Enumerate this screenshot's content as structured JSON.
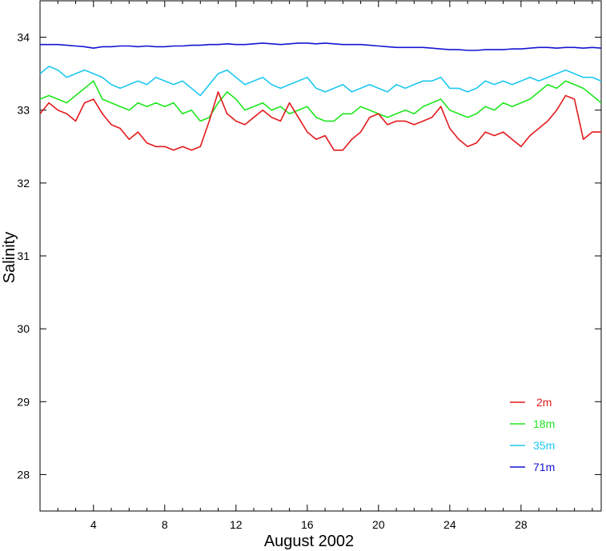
{
  "chart_data": {
    "type": "line",
    "title": "",
    "xlabel": "August 2002",
    "ylabel": "Salinity",
    "xlim": [
      1,
      32.5
    ],
    "ylim": [
      27.5,
      34.5
    ],
    "x_ticks": [
      4,
      8,
      12,
      16,
      20,
      24,
      28
    ],
    "y_ticks": [
      28,
      29,
      30,
      31,
      32,
      33,
      34
    ],
    "grid": false,
    "legend_position": "bottom-right",
    "series": [
      {
        "name": "2m",
        "color": "#e41a1c",
        "x": [
          1.0,
          1.5,
          2.0,
          2.5,
          3.0,
          3.5,
          4.0,
          4.5,
          5.0,
          5.5,
          6.0,
          6.5,
          7.0,
          7.5,
          8.0,
          8.5,
          9.0,
          9.5,
          10.0,
          10.5,
          11.0,
          11.5,
          12.0,
          12.5,
          13.0,
          13.5,
          14.0,
          14.5,
          15.0,
          15.5,
          16.0,
          16.5,
          17.0,
          17.5,
          18.0,
          18.5,
          19.0,
          19.5,
          20.0,
          20.5,
          21.0,
          21.5,
          22.0,
          22.5,
          23.0,
          23.5,
          24.0,
          24.5,
          25.0,
          25.5,
          26.0,
          26.5,
          27.0,
          27.5,
          28.0,
          28.5,
          29.0,
          29.5,
          30.0,
          30.5,
          31.0,
          31.5,
          32.0,
          32.5
        ],
        "values": [
          32.95,
          33.1,
          33.0,
          32.95,
          32.85,
          33.1,
          33.15,
          32.95,
          32.8,
          32.75,
          32.6,
          32.7,
          32.55,
          32.5,
          32.5,
          32.45,
          32.5,
          32.45,
          32.5,
          32.85,
          33.25,
          32.95,
          32.85,
          32.8,
          32.9,
          33.0,
          32.9,
          32.85,
          33.1,
          32.9,
          32.7,
          32.6,
          32.65,
          32.45,
          32.45,
          32.6,
          32.7,
          32.9,
          32.95,
          32.8,
          32.85,
          32.85,
          32.8,
          32.85,
          32.9,
          33.05,
          32.75,
          32.6,
          32.5,
          32.55,
          32.7,
          32.65,
          32.7,
          32.6,
          32.5,
          32.65,
          32.75,
          32.85,
          33.0,
          33.2,
          33.15,
          32.6,
          32.7,
          32.7
        ]
      },
      {
        "name": "18m",
        "color": "#1ee61e",
        "x": [
          1.0,
          1.5,
          2.0,
          2.5,
          3.0,
          3.5,
          4.0,
          4.5,
          5.0,
          5.5,
          6.0,
          6.5,
          7.0,
          7.5,
          8.0,
          8.5,
          9.0,
          9.5,
          10.0,
          10.5,
          11.0,
          11.5,
          12.0,
          12.5,
          13.0,
          13.5,
          14.0,
          14.5,
          15.0,
          15.5,
          16.0,
          16.5,
          17.0,
          17.5,
          18.0,
          18.5,
          19.0,
          19.5,
          20.0,
          20.5,
          21.0,
          21.5,
          22.0,
          22.5,
          23.0,
          23.5,
          24.0,
          24.5,
          25.0,
          25.5,
          26.0,
          26.5,
          27.0,
          27.5,
          28.0,
          28.5,
          29.0,
          29.5,
          30.0,
          30.5,
          31.0,
          31.5,
          32.0,
          32.5
        ],
        "values": [
          33.15,
          33.2,
          33.15,
          33.1,
          33.2,
          33.3,
          33.4,
          33.15,
          33.1,
          33.05,
          33.0,
          33.1,
          33.05,
          33.1,
          33.05,
          33.1,
          32.95,
          33.0,
          32.85,
          32.9,
          33.1,
          33.25,
          33.15,
          33.0,
          33.05,
          33.1,
          33.0,
          33.05,
          32.95,
          33.0,
          33.05,
          32.9,
          32.85,
          32.85,
          32.95,
          32.95,
          33.05,
          33.0,
          32.95,
          32.9,
          32.95,
          33.0,
          32.95,
          33.05,
          33.1,
          33.15,
          33.0,
          32.95,
          32.9,
          32.95,
          33.05,
          33.0,
          33.1,
          33.05,
          33.1,
          33.15,
          33.25,
          33.35,
          33.3,
          33.4,
          33.35,
          33.3,
          33.2,
          33.1
        ]
      },
      {
        "name": "35m",
        "color": "#1ec8f0",
        "x": [
          1.0,
          1.5,
          2.0,
          2.5,
          3.0,
          3.5,
          4.0,
          4.5,
          5.0,
          5.5,
          6.0,
          6.5,
          7.0,
          7.5,
          8.0,
          8.5,
          9.0,
          9.5,
          10.0,
          10.5,
          11.0,
          11.5,
          12.0,
          12.5,
          13.0,
          13.5,
          14.0,
          14.5,
          15.0,
          15.5,
          16.0,
          16.5,
          17.0,
          17.5,
          18.0,
          18.5,
          19.0,
          19.5,
          20.0,
          20.5,
          21.0,
          21.5,
          22.0,
          22.5,
          23.0,
          23.5,
          24.0,
          24.5,
          25.0,
          25.5,
          26.0,
          26.5,
          27.0,
          27.5,
          28.0,
          28.5,
          29.0,
          29.5,
          30.0,
          30.5,
          31.0,
          31.5,
          32.0,
          32.5
        ],
        "values": [
          33.5,
          33.6,
          33.55,
          33.45,
          33.5,
          33.55,
          33.5,
          33.45,
          33.35,
          33.3,
          33.35,
          33.4,
          33.35,
          33.45,
          33.4,
          33.35,
          33.4,
          33.3,
          33.2,
          33.35,
          33.5,
          33.55,
          33.45,
          33.35,
          33.4,
          33.45,
          33.35,
          33.3,
          33.35,
          33.4,
          33.45,
          33.3,
          33.25,
          33.3,
          33.35,
          33.25,
          33.3,
          33.35,
          33.3,
          33.25,
          33.35,
          33.3,
          33.35,
          33.4,
          33.4,
          33.45,
          33.3,
          33.3,
          33.25,
          33.3,
          33.4,
          33.35,
          33.4,
          33.35,
          33.4,
          33.45,
          33.4,
          33.45,
          33.5,
          33.55,
          33.5,
          33.45,
          33.45,
          33.4
        ]
      },
      {
        "name": "71m",
        "color": "#1414d2",
        "x": [
          1.0,
          1.5,
          2.0,
          2.5,
          3.0,
          3.5,
          4.0,
          4.5,
          5.0,
          5.5,
          6.0,
          6.5,
          7.0,
          7.5,
          8.0,
          8.5,
          9.0,
          9.5,
          10.0,
          10.5,
          11.0,
          11.5,
          12.0,
          12.5,
          13.0,
          13.5,
          14.0,
          14.5,
          15.0,
          15.5,
          16.0,
          16.5,
          17.0,
          17.5,
          18.0,
          18.5,
          19.0,
          19.5,
          20.0,
          20.5,
          21.0,
          21.5,
          22.0,
          22.5,
          23.0,
          23.5,
          24.0,
          24.5,
          25.0,
          25.5,
          26.0,
          26.5,
          27.0,
          27.5,
          28.0,
          28.5,
          29.0,
          29.5,
          30.0,
          30.5,
          31.0,
          31.5,
          32.0,
          32.5
        ],
        "values": [
          33.9,
          33.9,
          33.9,
          33.89,
          33.88,
          33.87,
          33.85,
          33.87,
          33.87,
          33.88,
          33.88,
          33.87,
          33.88,
          33.87,
          33.87,
          33.88,
          33.88,
          33.89,
          33.89,
          33.9,
          33.9,
          33.91,
          33.9,
          33.9,
          33.91,
          33.92,
          33.91,
          33.9,
          33.91,
          33.92,
          33.92,
          33.91,
          33.92,
          33.91,
          33.9,
          33.9,
          33.9,
          33.89,
          33.88,
          33.87,
          33.86,
          33.86,
          33.86,
          33.86,
          33.85,
          33.84,
          33.83,
          33.83,
          33.82,
          33.82,
          33.83,
          33.83,
          33.83,
          33.84,
          33.84,
          33.85,
          33.86,
          33.86,
          33.85,
          33.86,
          33.86,
          33.85,
          33.86,
          33.85
        ]
      }
    ]
  }
}
